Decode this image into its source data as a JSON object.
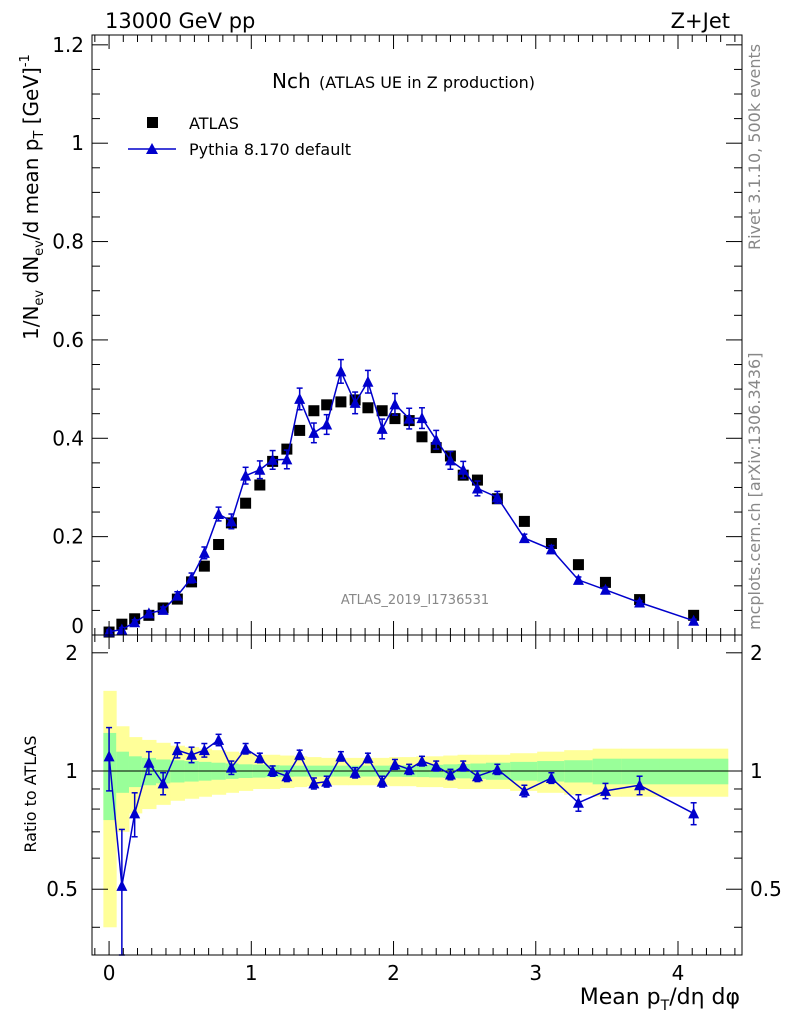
{
  "header": {
    "left": "13000 GeV pp",
    "right": "Z+Jet"
  },
  "chart_data": [
    {
      "type": "scatter",
      "panel": "main",
      "title": "Nch",
      "subtitle": "(ATLAS UE in Z production)",
      "ylabel": "1/N_ev dN_ev/d mean p_T [GeV]^-1",
      "xlim": [
        -0.12,
        4.45
      ],
      "ylim": [
        0,
        1.22
      ],
      "yticks": [
        0,
        0.2,
        0.4,
        0.6,
        0.8,
        1,
        1.2
      ],
      "ytick_labels": [
        "0",
        "0.2",
        "0.4",
        "0.6",
        "0.8",
        "1",
        "1.2"
      ],
      "legend": {
        "position": "top-left",
        "data_label": "ATLAS",
        "mc_label": "Pythia 8.170 default"
      },
      "watermark": "ATLAS_2019_I1736531",
      "x": [
        0.0,
        0.09,
        0.18,
        0.28,
        0.38,
        0.48,
        0.58,
        0.67,
        0.77,
        0.86,
        0.96,
        1.06,
        1.15,
        1.25,
        1.34,
        1.44,
        1.53,
        1.63,
        1.73,
        1.82,
        1.92,
        2.01,
        2.11,
        2.2,
        2.3,
        2.4,
        2.49,
        2.59,
        2.73,
        2.92,
        3.11,
        3.3,
        3.49,
        3.73,
        4.11
      ],
      "series": [
        {
          "name": "ATLAS",
          "marker": "square",
          "values": [
            0.006,
            0.022,
            0.033,
            0.04,
            0.055,
            0.073,
            0.108,
            0.14,
            0.184,
            0.228,
            0.268,
            0.305,
            0.353,
            0.378,
            0.416,
            0.456,
            0.468,
            0.474,
            0.478,
            0.462,
            0.456,
            0.44,
            0.436,
            0.403,
            0.381,
            0.364,
            0.325,
            0.315,
            0.277,
            0.231,
            0.186,
            0.143,
            0.107,
            0.072,
            0.04
          ]
        },
        {
          "name": "Pythia 8.170 default",
          "marker": "triangle",
          "color": "#0000cc",
          "values": [
            0.007,
            0.011,
            0.026,
            0.044,
            0.051,
            0.08,
            0.116,
            0.167,
            0.246,
            0.231,
            0.324,
            0.336,
            0.356,
            0.357,
            0.48,
            0.411,
            0.428,
            0.536,
            0.472,
            0.515,
            0.419,
            0.469,
            0.44,
            0.441,
            0.397,
            0.355,
            0.336,
            0.298,
            0.28,
            0.197,
            0.174,
            0.112,
            0.092,
            0.066,
            0.029
          ],
          "errors": [
            0.003,
            0.004,
            0.005,
            0.005,
            0.006,
            0.008,
            0.01,
            0.012,
            0.014,
            0.015,
            0.017,
            0.018,
            0.019,
            0.019,
            0.022,
            0.02,
            0.02,
            0.024,
            0.022,
            0.023,
            0.02,
            0.022,
            0.021,
            0.021,
            0.019,
            0.018,
            0.017,
            0.015,
            0.012,
            0.008,
            0.008,
            0.006,
            0.005,
            0.004,
            0.003
          ]
        }
      ]
    },
    {
      "type": "scatter",
      "panel": "ratio",
      "ylabel": "Ratio to ATLAS",
      "xlabel": "Mean p_T/dη dφ",
      "xlim": [
        -0.12,
        4.45
      ],
      "ylim": [
        0.34,
        2.22
      ],
      "yticks": [
        0.5,
        1,
        2
      ],
      "ytick_labels": [
        "0.5",
        "1",
        "2"
      ],
      "xticks": [
        0,
        1,
        2,
        3,
        4
      ],
      "xtick_labels": [
        "0",
        "1",
        "2",
        "3",
        "4"
      ],
      "bin_edges": [
        -0.04,
        0.05,
        0.14,
        0.23,
        0.33,
        0.43,
        0.53,
        0.63,
        0.72,
        0.82,
        0.91,
        1.01,
        1.1,
        1.2,
        1.3,
        1.39,
        1.49,
        1.58,
        1.68,
        1.77,
        1.87,
        1.97,
        2.06,
        2.16,
        2.25,
        2.35,
        2.45,
        2.54,
        2.65,
        2.82,
        3.01,
        3.2,
        3.4,
        3.6,
        3.87,
        4.35
      ],
      "band_stat": [
        0.25,
        0.12,
        0.09,
        0.08,
        0.07,
        0.065,
        0.06,
        0.055,
        0.05,
        0.045,
        0.04,
        0.038,
        0.035,
        0.033,
        0.032,
        0.032,
        0.032,
        0.032,
        0.032,
        0.032,
        0.032,
        0.033,
        0.034,
        0.035,
        0.037,
        0.04,
        0.042,
        0.045,
        0.05,
        0.055,
        0.06,
        0.065,
        0.075,
        0.075,
        0.075
      ],
      "band_total": [
        0.6,
        0.3,
        0.22,
        0.2,
        0.18,
        0.16,
        0.15,
        0.14,
        0.13,
        0.12,
        0.11,
        0.1,
        0.1,
        0.095,
        0.09,
        0.085,
        0.08,
        0.08,
        0.08,
        0.08,
        0.08,
        0.085,
        0.085,
        0.09,
        0.09,
        0.095,
        0.1,
        0.1,
        0.1,
        0.11,
        0.12,
        0.13,
        0.14,
        0.14,
        0.14
      ],
      "series": [
        {
          "name": "Pythia 8.170 default / ATLAS",
          "color": "#0000cc",
          "values": [
            1.09,
            0.51,
            0.78,
            1.05,
            0.93,
            1.13,
            1.1,
            1.13,
            1.2,
            1.02,
            1.14,
            1.08,
            1.0,
            0.97,
            1.1,
            0.93,
            0.94,
            1.09,
            0.99,
            1.08,
            0.94,
            1.04,
            1.01,
            1.06,
            1.03,
            0.98,
            1.03,
            0.97,
            1.01,
            0.89,
            0.96,
            0.83,
            0.89,
            0.92,
            0.78
          ],
          "errors": [
            0.2,
            0.2,
            0.1,
            0.07,
            0.06,
            0.05,
            0.05,
            0.045,
            0.04,
            0.04,
            0.035,
            0.03,
            0.03,
            0.03,
            0.03,
            0.03,
            0.03,
            0.03,
            0.03,
            0.03,
            0.03,
            0.03,
            0.03,
            0.03,
            0.03,
            0.03,
            0.03,
            0.03,
            0.03,
            0.03,
            0.03,
            0.04,
            0.04,
            0.05,
            0.05
          ]
        }
      ]
    }
  ],
  "side_labels": {
    "rivet": "Rivet 3.1.10,  500k events",
    "site": "mcplots.cern.ch [arXiv:1306.3436]"
  },
  "colors": {
    "mc": "#0000cc",
    "band_total": "#ffff99",
    "band_stat": "#99ff99",
    "watermark": "#888888"
  }
}
